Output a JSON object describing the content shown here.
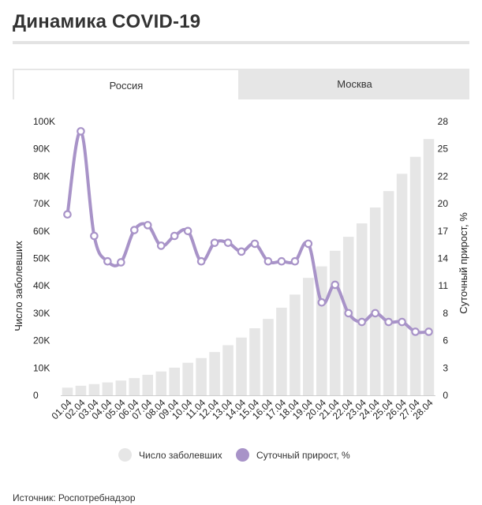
{
  "header": {
    "title": "Динамика COVID-19"
  },
  "tabs": [
    {
      "label": "Россия",
      "active": true
    },
    {
      "label": "Москва",
      "active": false
    }
  ],
  "legend": {
    "bars_label": "Число заболевших",
    "line_label": "Суточный прирост, %"
  },
  "source": "Источник: Роспотребнадзор",
  "colors": {
    "bar": "#e6e6e6",
    "line": "#a893c8",
    "marker_fill": "#ffffff"
  },
  "chart_data": {
    "type": "bar",
    "categories": [
      "01.04",
      "02.04",
      "03.04",
      "04.04",
      "05.04",
      "06.04",
      "07.04",
      "08.04",
      "09.04",
      "10.04",
      "11.04",
      "12.04",
      "13.04",
      "14.04",
      "15.04",
      "16.04",
      "17.04",
      "18.04",
      "19.04",
      "20.04",
      "21.04",
      "22.04",
      "23.04",
      "24.04",
      "25.04",
      "26.04",
      "27.04",
      "28.04"
    ],
    "ylabel": "Число заболевших",
    "y2label": "Суточный прирост, %",
    "ylim": [
      0,
      100000
    ],
    "y2lim": [
      0,
      28
    ],
    "yticks": [
      "0",
      "10K",
      "20K",
      "30K",
      "40K",
      "50K",
      "60K",
      "70K",
      "80K",
      "90K",
      "100K"
    ],
    "y2ticks": [
      "0",
      "3",
      "6",
      "8",
      "11",
      "14",
      "17",
      "20",
      "22",
      "25",
      "28"
    ],
    "series": [
      {
        "name": "Число заболевших",
        "type": "bar",
        "values": [
          2800,
          3500,
          4100,
          4700,
          5400,
          6300,
          7500,
          8700,
          10100,
          11900,
          13600,
          15800,
          18300,
          21100,
          24500,
          27900,
          32000,
          36800,
          42900,
          47100,
          52800,
          57900,
          62800,
          68600,
          74600,
          80900,
          87100,
          93600
        ]
      },
      {
        "name": "Суточный прирост, %",
        "type": "line",
        "axis": "right",
        "values": [
          18.5,
          27.0,
          16.3,
          13.7,
          13.6,
          16.9,
          17.4,
          15.3,
          16.3,
          16.8,
          13.7,
          15.6,
          15.6,
          14.7,
          15.5,
          13.7,
          13.7,
          13.7,
          15.5,
          9.5,
          11.3,
          8.4,
          7.5,
          8.4,
          7.5,
          7.5,
          6.5,
          6.5
        ]
      }
    ],
    "grid": false,
    "legend_position": "bottom"
  }
}
